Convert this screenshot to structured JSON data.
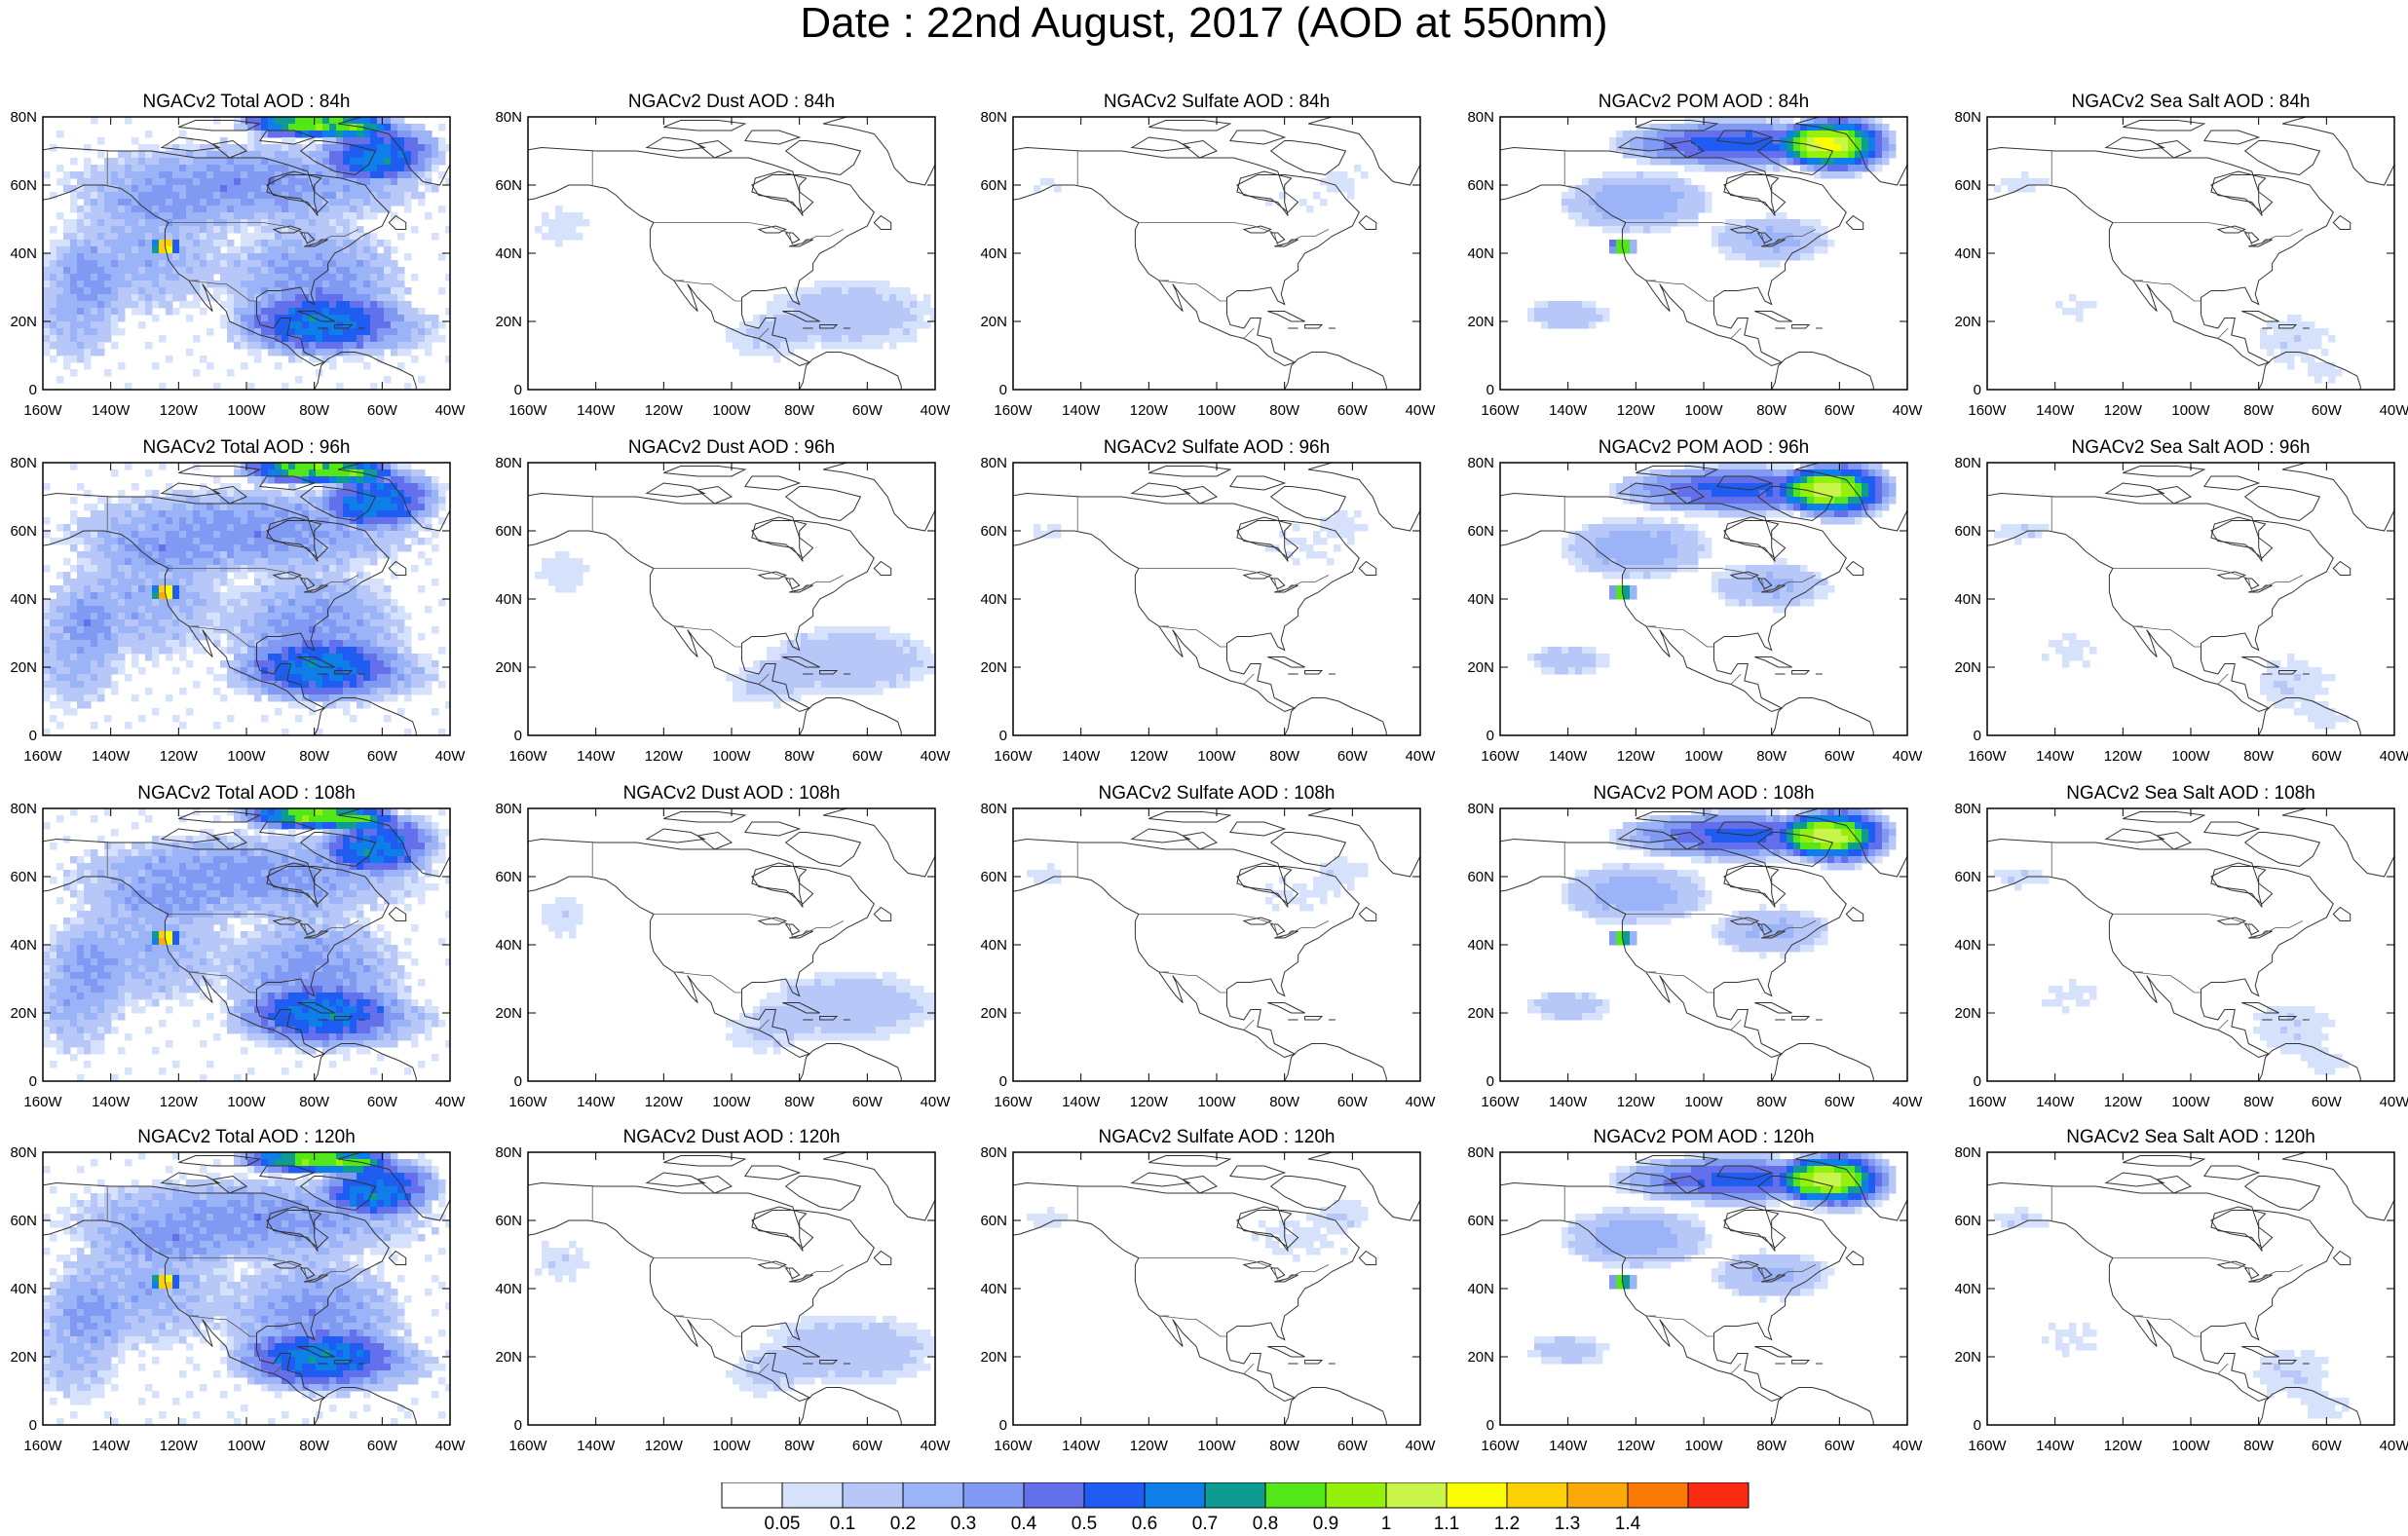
{
  "title": "Date : 22nd August, 2017 (AOD at 550nm)",
  "lon_ticks": [
    "160W",
    "140W",
    "120W",
    "100W",
    "80W",
    "60W",
    "40W"
  ],
  "lat_ticks": [
    "0",
    "20N",
    "40N",
    "60N",
    "80N"
  ],
  "species": [
    "Total",
    "Dust",
    "Sulfate",
    "POM",
    "Sea Salt"
  ],
  "lead_hours": [
    "84h",
    "96h",
    "108h",
    "120h"
  ],
  "panels": [
    {
      "title": "NGACv2 Total AOD : 84h",
      "species": "total",
      "level": 1.0
    },
    {
      "title": "NGACv2 Dust AOD : 84h",
      "species": "dust",
      "level": 0.55
    },
    {
      "title": "NGACv2 Sulfate AOD : 84h",
      "species": "sulfate",
      "level": 0.3
    },
    {
      "title": "NGACv2 POM AOD : 84h",
      "species": "pom",
      "level": 0.95
    },
    {
      "title": "NGACv2 Sea Salt AOD : 84h",
      "species": "seasalt",
      "level": 0.35
    },
    {
      "title": "NGACv2 Total AOD : 96h",
      "species": "total",
      "level": 1.0
    },
    {
      "title": "NGACv2 Dust AOD : 96h",
      "species": "dust",
      "level": 0.6
    },
    {
      "title": "NGACv2 Sulfate AOD : 96h",
      "species": "sulfate",
      "level": 0.35
    },
    {
      "title": "NGACv2 POM AOD : 96h",
      "species": "pom",
      "level": 0.9
    },
    {
      "title": "NGACv2 Sea Salt AOD : 96h",
      "species": "seasalt",
      "level": 0.4
    },
    {
      "title": "NGACv2 Total AOD : 108h",
      "species": "total",
      "level": 1.0
    },
    {
      "title": "NGACv2 Dust AOD : 108h",
      "species": "dust",
      "level": 0.6
    },
    {
      "title": "NGACv2 Sulfate AOD : 108h",
      "species": "sulfate",
      "level": 0.4
    },
    {
      "title": "NGACv2 POM AOD : 108h",
      "species": "pom",
      "level": 0.9
    },
    {
      "title": "NGACv2 Sea Salt AOD : 108h",
      "species": "seasalt",
      "level": 0.4
    },
    {
      "title": "NGACv2 Total AOD : 120h",
      "species": "total",
      "level": 1.0
    },
    {
      "title": "NGACv2 Dust AOD : 120h",
      "species": "dust",
      "level": 0.6
    },
    {
      "title": "NGACv2 Sulfate AOD : 120h",
      "species": "sulfate",
      "level": 0.45
    },
    {
      "title": "NGACv2 POM AOD : 120h",
      "species": "pom",
      "level": 0.9
    },
    {
      "title": "NGACv2 Sea Salt  AOD : 120h",
      "species": "seasalt",
      "level": 0.4
    }
  ],
  "colorbar": {
    "labels": [
      "0.05",
      "0.1",
      "0.2",
      "0.3",
      "0.4",
      "0.5",
      "0.6",
      "0.7",
      "0.8",
      "0.9",
      "1",
      "1.1",
      "1.2",
      "1.3",
      "1.4"
    ],
    "colors": [
      "#ffffff",
      "#d6e1fb",
      "#b7c8f8",
      "#9bb4f7",
      "#8099f2",
      "#6470eb",
      "#1f5cf2",
      "#0e7ee9",
      "#0e9b94",
      "#53e71a",
      "#95f10c",
      "#c9f44a",
      "#fbfb01",
      "#fdd103",
      "#fca807",
      "#fb7a06",
      "#fb2a12"
    ]
  },
  "colors": {
    "map_lines": "#333333",
    "land_border": "#555555"
  }
}
